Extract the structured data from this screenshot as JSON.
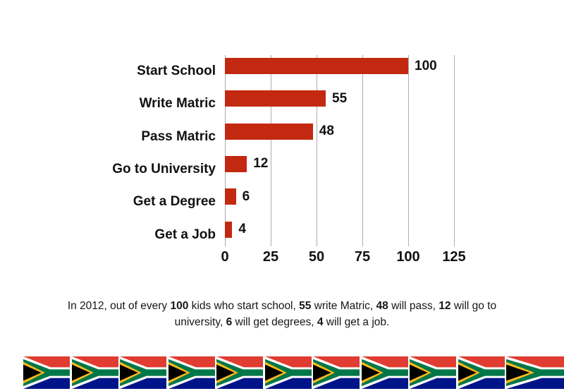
{
  "chart_data": {
    "type": "bar",
    "orientation": "horizontal",
    "title": "",
    "xlabel": "",
    "ylabel": "",
    "categories": [
      "Start School",
      "Write Matric",
      "Pass Matric",
      "Go to University",
      "Get a Degree",
      "Get a Job"
    ],
    "values": [
      100,
      55,
      48,
      12,
      6,
      4
    ],
    "x_ticks": [
      0,
      25,
      50,
      75,
      100,
      125
    ],
    "xlim": [
      0,
      125
    ],
    "grid": true,
    "legend": false,
    "bar_color": "#c22910",
    "gridline_color": "#adadad",
    "label_color": "#111111"
  },
  "caption": {
    "segments": [
      {
        "text": "In 2012, out of every ",
        "bold": false
      },
      {
        "text": "100",
        "bold": true
      },
      {
        "text": " kids who start school, ",
        "bold": false
      },
      {
        "text": "55",
        "bold": true
      },
      {
        "text": " write Matric, ",
        "bold": false
      },
      {
        "text": "48",
        "bold": true
      },
      {
        "text": " will pass, ",
        "bold": false
      },
      {
        "text": "12",
        "bold": true
      },
      {
        "text": " will go to university, ",
        "bold": false
      },
      {
        "text": "6",
        "bold": true
      },
      {
        "text": " will get degrees, ",
        "bold": false
      },
      {
        "text": "4",
        "bold": true
      },
      {
        "text": " will get a job.",
        "bold": false
      }
    ]
  },
  "flag_strip": {
    "flag_name": "south-africa-flag",
    "count": 11,
    "colors": {
      "red": "#e03c31",
      "blue": "#001489",
      "green": "#007749",
      "yellow": "#ffb81c",
      "black": "#000000",
      "white": "#ffffff"
    }
  }
}
